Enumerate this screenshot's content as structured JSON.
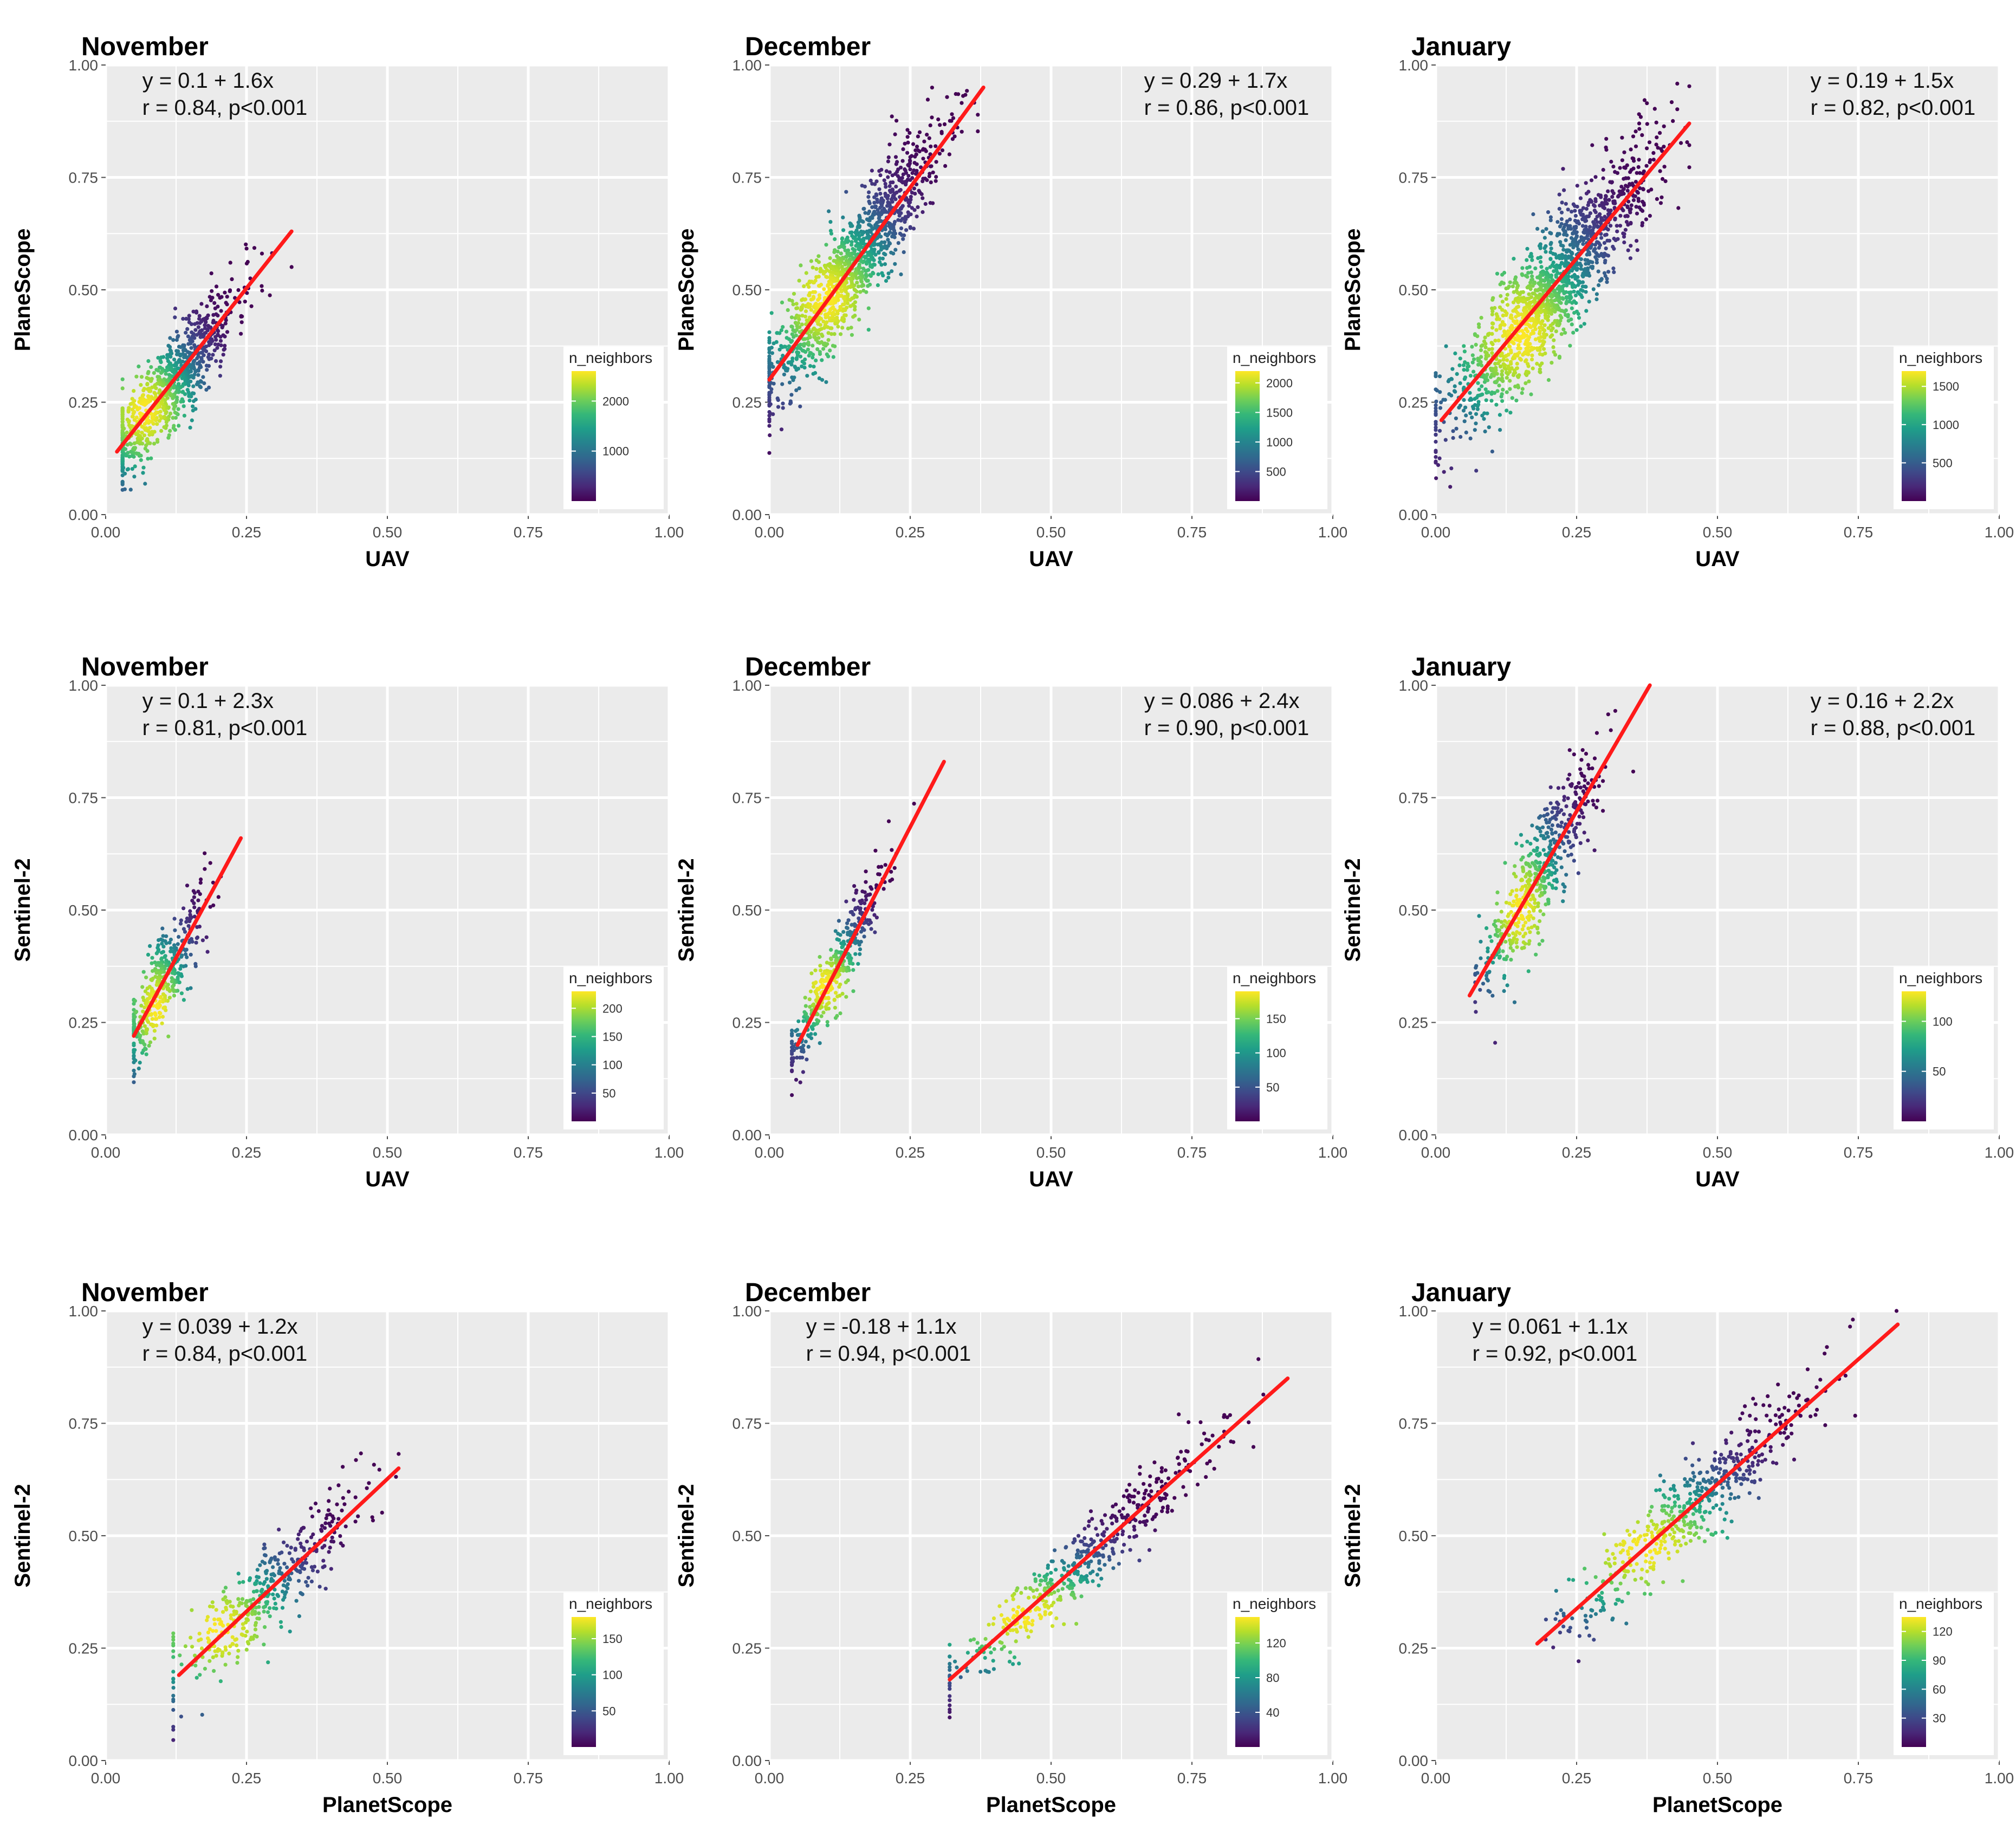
{
  "chart_data": [
    {
      "type": "scatter",
      "title": "November",
      "xlabel": "UAV",
      "ylabel": "PlaneScope",
      "xlim": [
        0,
        1
      ],
      "ylim": [
        0,
        1
      ],
      "xticks": [
        0,
        0.25,
        0.5,
        0.75,
        1.0
      ],
      "yticks": [
        0,
        0.25,
        0.5,
        0.75,
        1.0
      ],
      "xtick_labels": [
        "0.00",
        "0.25",
        "0.50",
        "0.75",
        "1.00"
      ],
      "ytick_labels": [
        "0.00",
        "0.25",
        "0.50",
        "0.75",
        "1.00"
      ],
      "equation": "y = 0.1 + 1.6x",
      "stats": "r = 0.84,   p<0.001",
      "eq_position": "top-left",
      "fit": {
        "x0": 0.02,
        "y0": 0.14,
        "x1": 0.33,
        "y1": 0.63
      },
      "cloud": {
        "x_center": 0.11,
        "x_sd": 0.06,
        "x_min": 0.03,
        "x_max": 0.33,
        "resid_sd": 0.05,
        "n": 900,
        "peak": [
          0.07,
          0.23
        ],
        "seed": 11
      },
      "legend": {
        "title": "n_neighbors",
        "ticks": [
          1000,
          2000
        ],
        "min": 0,
        "max": 2600
      }
    },
    {
      "type": "scatter",
      "title": "December",
      "xlabel": "UAV",
      "ylabel": "PlaneScope",
      "xlim": [
        0,
        1
      ],
      "ylim": [
        0,
        1
      ],
      "xticks": [
        0,
        0.25,
        0.5,
        0.75,
        1.0
      ],
      "yticks": [
        0,
        0.25,
        0.5,
        0.75,
        1.0
      ],
      "xtick_labels": [
        "0.00",
        "0.25",
        "0.50",
        "0.75",
        "1.00"
      ],
      "ytick_labels": [
        "0.00",
        "0.25",
        "0.50",
        "0.75",
        "1.00"
      ],
      "equation": "y = 0.29 + 1.7x",
      "stats": "r = 0.86,   p<0.001",
      "eq_position": "top-right",
      "fit": {
        "x0": 0.0,
        "y0": 0.3,
        "x1": 0.38,
        "y1": 0.95
      },
      "cloud": {
        "x_center": 0.14,
        "x_sd": 0.08,
        "x_min": 0.0,
        "x_max": 0.37,
        "resid_sd": 0.06,
        "n": 1300,
        "peak": [
          0.1,
          0.48
        ],
        "seed": 23
      },
      "legend": {
        "title": "n_neighbors",
        "ticks": [
          500,
          1000,
          1500,
          2000
        ],
        "min": 0,
        "max": 2200
      }
    },
    {
      "type": "scatter",
      "title": "January",
      "xlabel": "UAV",
      "ylabel": "PlaneScope",
      "xlim": [
        0,
        1
      ],
      "ylim": [
        0,
        1
      ],
      "xticks": [
        0,
        0.25,
        0.5,
        0.75,
        1.0
      ],
      "yticks": [
        0,
        0.25,
        0.5,
        0.75,
        1.0
      ],
      "xtick_labels": [
        "0.00",
        "0.25",
        "0.50",
        "0.75",
        "1.00"
      ],
      "ytick_labels": [
        "0.00",
        "0.25",
        "0.50",
        "0.75",
        "1.00"
      ],
      "equation": "y = 0.19 + 1.5x",
      "stats": "r = 0.82,   p<0.001",
      "eq_position": "top-right",
      "fit": {
        "x0": 0.01,
        "y0": 0.21,
        "x1": 0.45,
        "y1": 0.87
      },
      "cloud": {
        "x_center": 0.2,
        "x_sd": 0.09,
        "x_min": 0.0,
        "x_max": 0.45,
        "resid_sd": 0.07,
        "n": 1500,
        "peak": [
          0.15,
          0.4
        ],
        "seed": 37
      },
      "legend": {
        "title": "n_neighbors",
        "ticks": [
          500,
          1000,
          1500
        ],
        "min": 0,
        "max": 1700
      }
    },
    {
      "type": "scatter",
      "title": "November",
      "xlabel": "UAV",
      "ylabel": "Sentinel-2",
      "xlim": [
        0,
        1
      ],
      "ylim": [
        0,
        1
      ],
      "xticks": [
        0,
        0.25,
        0.5,
        0.75,
        1.0
      ],
      "yticks": [
        0,
        0.25,
        0.5,
        0.75,
        1.0
      ],
      "xtick_labels": [
        "0.00",
        "0.25",
        "0.50",
        "0.75",
        "1.00"
      ],
      "ytick_labels": [
        "0.00",
        "0.25",
        "0.50",
        "0.75",
        "1.00"
      ],
      "equation": "y = 0.1 + 2.3x",
      "stats": "r = 0.81,   p<0.001",
      "eq_position": "top-left",
      "fit": {
        "x0": 0.05,
        "y0": 0.22,
        "x1": 0.24,
        "y1": 0.66
      },
      "cloud": {
        "x_center": 0.1,
        "x_sd": 0.04,
        "x_min": 0.05,
        "x_max": 0.24,
        "resid_sd": 0.05,
        "n": 420,
        "peak": [
          0.09,
          0.28
        ],
        "seed": 41
      },
      "legend": {
        "title": "n_neighbors",
        "ticks": [
          50,
          100,
          150,
          200
        ],
        "min": 0,
        "max": 230
      }
    },
    {
      "type": "scatter",
      "title": "December",
      "xlabel": "UAV",
      "ylabel": "Sentinel-2",
      "xlim": [
        0,
        1
      ],
      "ylim": [
        0,
        1
      ],
      "xticks": [
        0,
        0.25,
        0.5,
        0.75,
        1.0
      ],
      "yticks": [
        0,
        0.25,
        0.5,
        0.75,
        1.0
      ],
      "xtick_labels": [
        "0.00",
        "0.25",
        "0.50",
        "0.75",
        "1.00"
      ],
      "ytick_labels": [
        "0.00",
        "0.25",
        "0.50",
        "0.75",
        "1.00"
      ],
      "equation": "y = 0.086 + 2.4x",
      "stats": "r = 0.90,   p<0.001",
      "eq_position": "top-right",
      "fit": {
        "x0": 0.05,
        "y0": 0.2,
        "x1": 0.31,
        "y1": 0.83
      },
      "cloud": {
        "x_center": 0.12,
        "x_sd": 0.05,
        "x_min": 0.04,
        "x_max": 0.31,
        "resid_sd": 0.04,
        "n": 420,
        "peak": [
          0.1,
          0.33
        ],
        "seed": 53
      },
      "legend": {
        "title": "n_neighbors",
        "ticks": [
          50,
          100,
          150
        ],
        "min": 0,
        "max": 190
      }
    },
    {
      "type": "scatter",
      "title": "January",
      "xlabel": "UAV",
      "ylabel": "Sentinel-2",
      "xlim": [
        0,
        1
      ],
      "ylim": [
        0,
        1
      ],
      "xticks": [
        0,
        0.25,
        0.5,
        0.75,
        1.0
      ],
      "yticks": [
        0,
        0.25,
        0.5,
        0.75,
        1.0
      ],
      "xtick_labels": [
        "0.00",
        "0.25",
        "0.50",
        "0.75",
        "1.00"
      ],
      "ytick_labels": [
        "0.00",
        "0.25",
        "0.50",
        "0.75",
        "1.00"
      ],
      "equation": "y = 0.16 + 2.2x",
      "stats": "r = 0.88,   p<0.001",
      "eq_position": "top-right",
      "fit": {
        "x0": 0.06,
        "y0": 0.31,
        "x1": 0.38,
        "y1": 1.0
      },
      "cloud": {
        "x_center": 0.18,
        "x_sd": 0.05,
        "x_min": 0.07,
        "x_max": 0.4,
        "resid_sd": 0.06,
        "n": 520,
        "peak": [
          0.15,
          0.5
        ],
        "seed": 67
      },
      "legend": {
        "title": "n_neighbors",
        "ticks": [
          50,
          100
        ],
        "min": 0,
        "max": 130
      }
    },
    {
      "type": "scatter",
      "title": "November",
      "xlabel": "PlanetScope",
      "ylabel": "Sentinel-2",
      "xlim": [
        0,
        1
      ],
      "ylim": [
        0,
        1
      ],
      "xticks": [
        0,
        0.25,
        0.5,
        0.75,
        1.0
      ],
      "yticks": [
        0,
        0.25,
        0.5,
        0.75,
        1.0
      ],
      "xtick_labels": [
        "0.00",
        "0.25",
        "0.50",
        "0.75",
        "1.00"
      ],
      "ytick_labels": [
        "0.00",
        "0.25",
        "0.50",
        "0.75",
        "1.00"
      ],
      "equation": "y = 0.039 + 1.2x",
      "stats": "r = 0.84,   p<0.001",
      "eq_position": "top-left",
      "fit": {
        "x0": 0.13,
        "y0": 0.19,
        "x1": 0.52,
        "y1": 0.65
      },
      "cloud": {
        "x_center": 0.28,
        "x_sd": 0.09,
        "x_min": 0.12,
        "x_max": 0.52,
        "resid_sd": 0.05,
        "n": 420,
        "peak": [
          0.2,
          0.29
        ],
        "seed": 71
      },
      "legend": {
        "title": "n_neighbors",
        "ticks": [
          50,
          100,
          150
        ],
        "min": 0,
        "max": 180
      }
    },
    {
      "type": "scatter",
      "title": "December",
      "xlabel": "PlanetScope",
      "ylabel": "Sentinel-2",
      "xlim": [
        0,
        1
      ],
      "ylim": [
        0,
        1
      ],
      "xticks": [
        0,
        0.25,
        0.5,
        0.75,
        1.0
      ],
      "yticks": [
        0,
        0.25,
        0.5,
        0.75,
        1.0
      ],
      "xtick_labels": [
        "0.00",
        "0.25",
        "0.50",
        "0.75",
        "1.00"
      ],
      "ytick_labels": [
        "0.00",
        "0.25",
        "0.50",
        "0.75",
        "1.00"
      ],
      "equation": "y = -0.18 + 1.1x",
      "stats": "r = 0.94,   p<0.001",
      "eq_position": "top-left",
      "fit": {
        "x0": 0.32,
        "y0": 0.18,
        "x1": 0.92,
        "y1": 0.85
      },
      "cloud": {
        "x_center": 0.55,
        "x_sd": 0.13,
        "x_min": 0.32,
        "x_max": 0.92,
        "resid_sd": 0.04,
        "n": 480,
        "peak": [
          0.45,
          0.32
        ],
        "seed": 83
      },
      "legend": {
        "title": "n_neighbors",
        "ticks": [
          40,
          80,
          120
        ],
        "min": 0,
        "max": 150
      }
    },
    {
      "type": "scatter",
      "title": "January",
      "xlabel": "PlanetScope",
      "ylabel": "Sentinel-2",
      "xlim": [
        0,
        1
      ],
      "ylim": [
        0,
        1
      ],
      "xticks": [
        0,
        0.25,
        0.5,
        0.75,
        1.0
      ],
      "yticks": [
        0,
        0.25,
        0.5,
        0.75,
        1.0
      ],
      "xtick_labels": [
        "0.00",
        "0.25",
        "0.50",
        "0.75",
        "1.00"
      ],
      "ytick_labels": [
        "0.00",
        "0.25",
        "0.50",
        "0.75",
        "1.00"
      ],
      "equation": "y = 0.061 + 1.1x",
      "stats": "r = 0.92,   p<0.001",
      "eq_position": "top-left",
      "fit": {
        "x0": 0.18,
        "y0": 0.26,
        "x1": 0.82,
        "y1": 0.97
      },
      "cloud": {
        "x_center": 0.45,
        "x_sd": 0.12,
        "x_min": 0.17,
        "x_max": 0.82,
        "resid_sd": 0.05,
        "n": 520,
        "peak": [
          0.37,
          0.47
        ],
        "seed": 97
      },
      "legend": {
        "title": "n_neighbors",
        "ticks": [
          30,
          60,
          90,
          120
        ],
        "min": 0,
        "max": 135
      }
    }
  ],
  "colors": {
    "panel_bg": "#ebebeb",
    "grid": "#ffffff",
    "fit_line": "#ff1a1a",
    "tick": "#4d4d4d",
    "viridis": [
      "#440154",
      "#482878",
      "#3e4989",
      "#31688e",
      "#26828e",
      "#1f9e89",
      "#35b779",
      "#6ece58",
      "#b5de2b",
      "#fde725"
    ]
  }
}
